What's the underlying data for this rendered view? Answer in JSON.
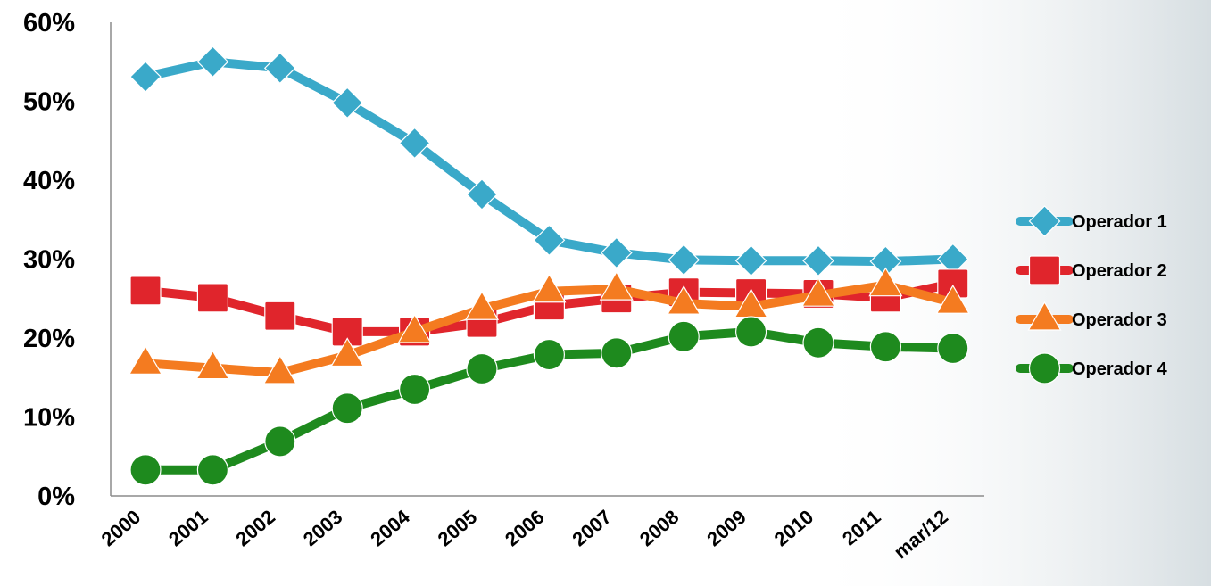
{
  "chart_data": {
    "type": "line",
    "categories": [
      "2000",
      "2001",
      "2002",
      "2003",
      "2004",
      "2005",
      "2006",
      "2007",
      "2008",
      "2009",
      "2010",
      "2011",
      "mar/12"
    ],
    "ylim": [
      0,
      60
    ],
    "yticks": [
      "0%",
      "10%",
      "20%",
      "30%",
      "40%",
      "50%",
      "60%"
    ],
    "grid": false,
    "legend_position": "right",
    "series": [
      {
        "name": "Operador 1",
        "color": "#3aa9c9",
        "marker": "diamond",
        "values": [
          53.1,
          55.0,
          54.2,
          49.8,
          44.7,
          38.2,
          32.4,
          30.8,
          29.9,
          29.8,
          29.8,
          29.7,
          30.0
        ]
      },
      {
        "name": "Operador 2",
        "color": "#e0252c",
        "marker": "square",
        "values": [
          26.0,
          25.1,
          22.8,
          20.8,
          20.8,
          21.9,
          24.1,
          25.0,
          25.8,
          25.7,
          25.6,
          25.1,
          26.9
        ]
      },
      {
        "name": "Operador 3",
        "color": "#f47b20",
        "marker": "triangle",
        "values": [
          16.8,
          16.2,
          15.6,
          17.8,
          20.8,
          23.7,
          25.9,
          26.2,
          24.4,
          24.0,
          25.4,
          26.7,
          24.5
        ]
      },
      {
        "name": "Operador 4",
        "color": "#1e8a1e",
        "marker": "circle",
        "values": [
          3.3,
          3.3,
          6.9,
          11.1,
          13.5,
          16.1,
          17.9,
          18.1,
          20.2,
          20.8,
          19.4,
          18.9,
          18.7
        ]
      }
    ]
  }
}
